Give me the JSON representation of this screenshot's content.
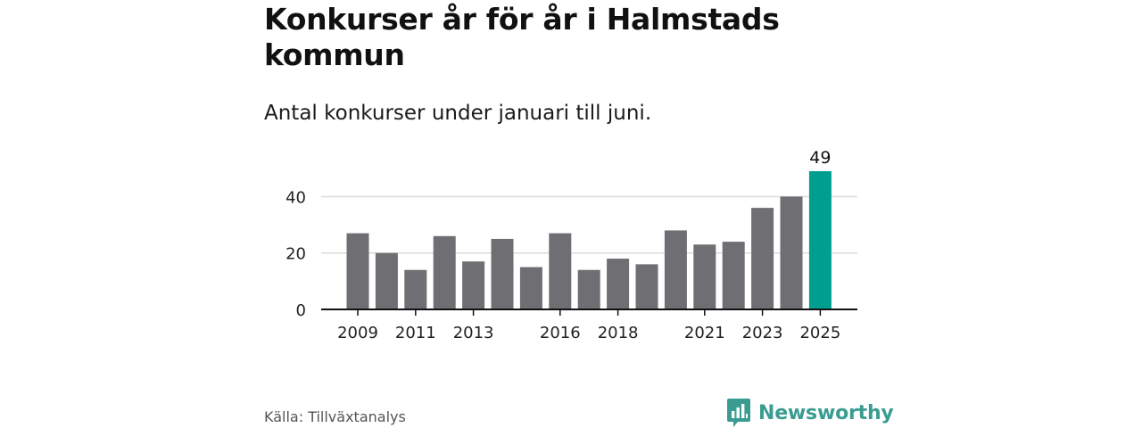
{
  "header": {
    "title": "Konkurser år för år i Halmstads kommun",
    "subtitle": "Antal konkurser under januari till juni."
  },
  "footer": {
    "source": "Källa: Tillväxtanalys",
    "brand": "Newsworthy",
    "brand_icon": "bar-chart-speech-bubble-icon"
  },
  "colors": {
    "bar": "#6f6e73",
    "highlight": "#009e8f",
    "grid": "#dcdcdc",
    "axis": "#111111",
    "brand": "#3a9c91"
  },
  "chart_data": {
    "type": "bar",
    "title": "Konkurser år för år i Halmstads kommun",
    "subtitle": "Antal konkurser under januari till juni.",
    "xlabel": "",
    "ylabel": "",
    "x": [
      2009,
      2010,
      2011,
      2012,
      2013,
      2014,
      2015,
      2016,
      2017,
      2018,
      2019,
      2020,
      2021,
      2022,
      2023,
      2024,
      2025
    ],
    "values": [
      27,
      20,
      14,
      26,
      17,
      25,
      15,
      27,
      14,
      18,
      16,
      28,
      23,
      24,
      36,
      40,
      49
    ],
    "highlight_index": 16,
    "data_labels": [
      {
        "index": 16,
        "text": "49"
      }
    ],
    "x_tick_labels": [
      {
        "value": 2009,
        "label": "2009"
      },
      {
        "value": 2011,
        "label": "2011"
      },
      {
        "value": 2013,
        "label": "2013"
      },
      {
        "value": 2016,
        "label": "2016"
      },
      {
        "value": 2018,
        "label": "2018"
      },
      {
        "value": 2021,
        "label": "2021"
      },
      {
        "value": 2023,
        "label": "2023"
      },
      {
        "value": 2025,
        "label": "2025"
      }
    ],
    "y_ticks": [
      0,
      20,
      40
    ],
    "y_tick_labels": [
      "0",
      "20",
      "40"
    ],
    "ylim": [
      0,
      49
    ],
    "grid": true,
    "legend": "none"
  }
}
